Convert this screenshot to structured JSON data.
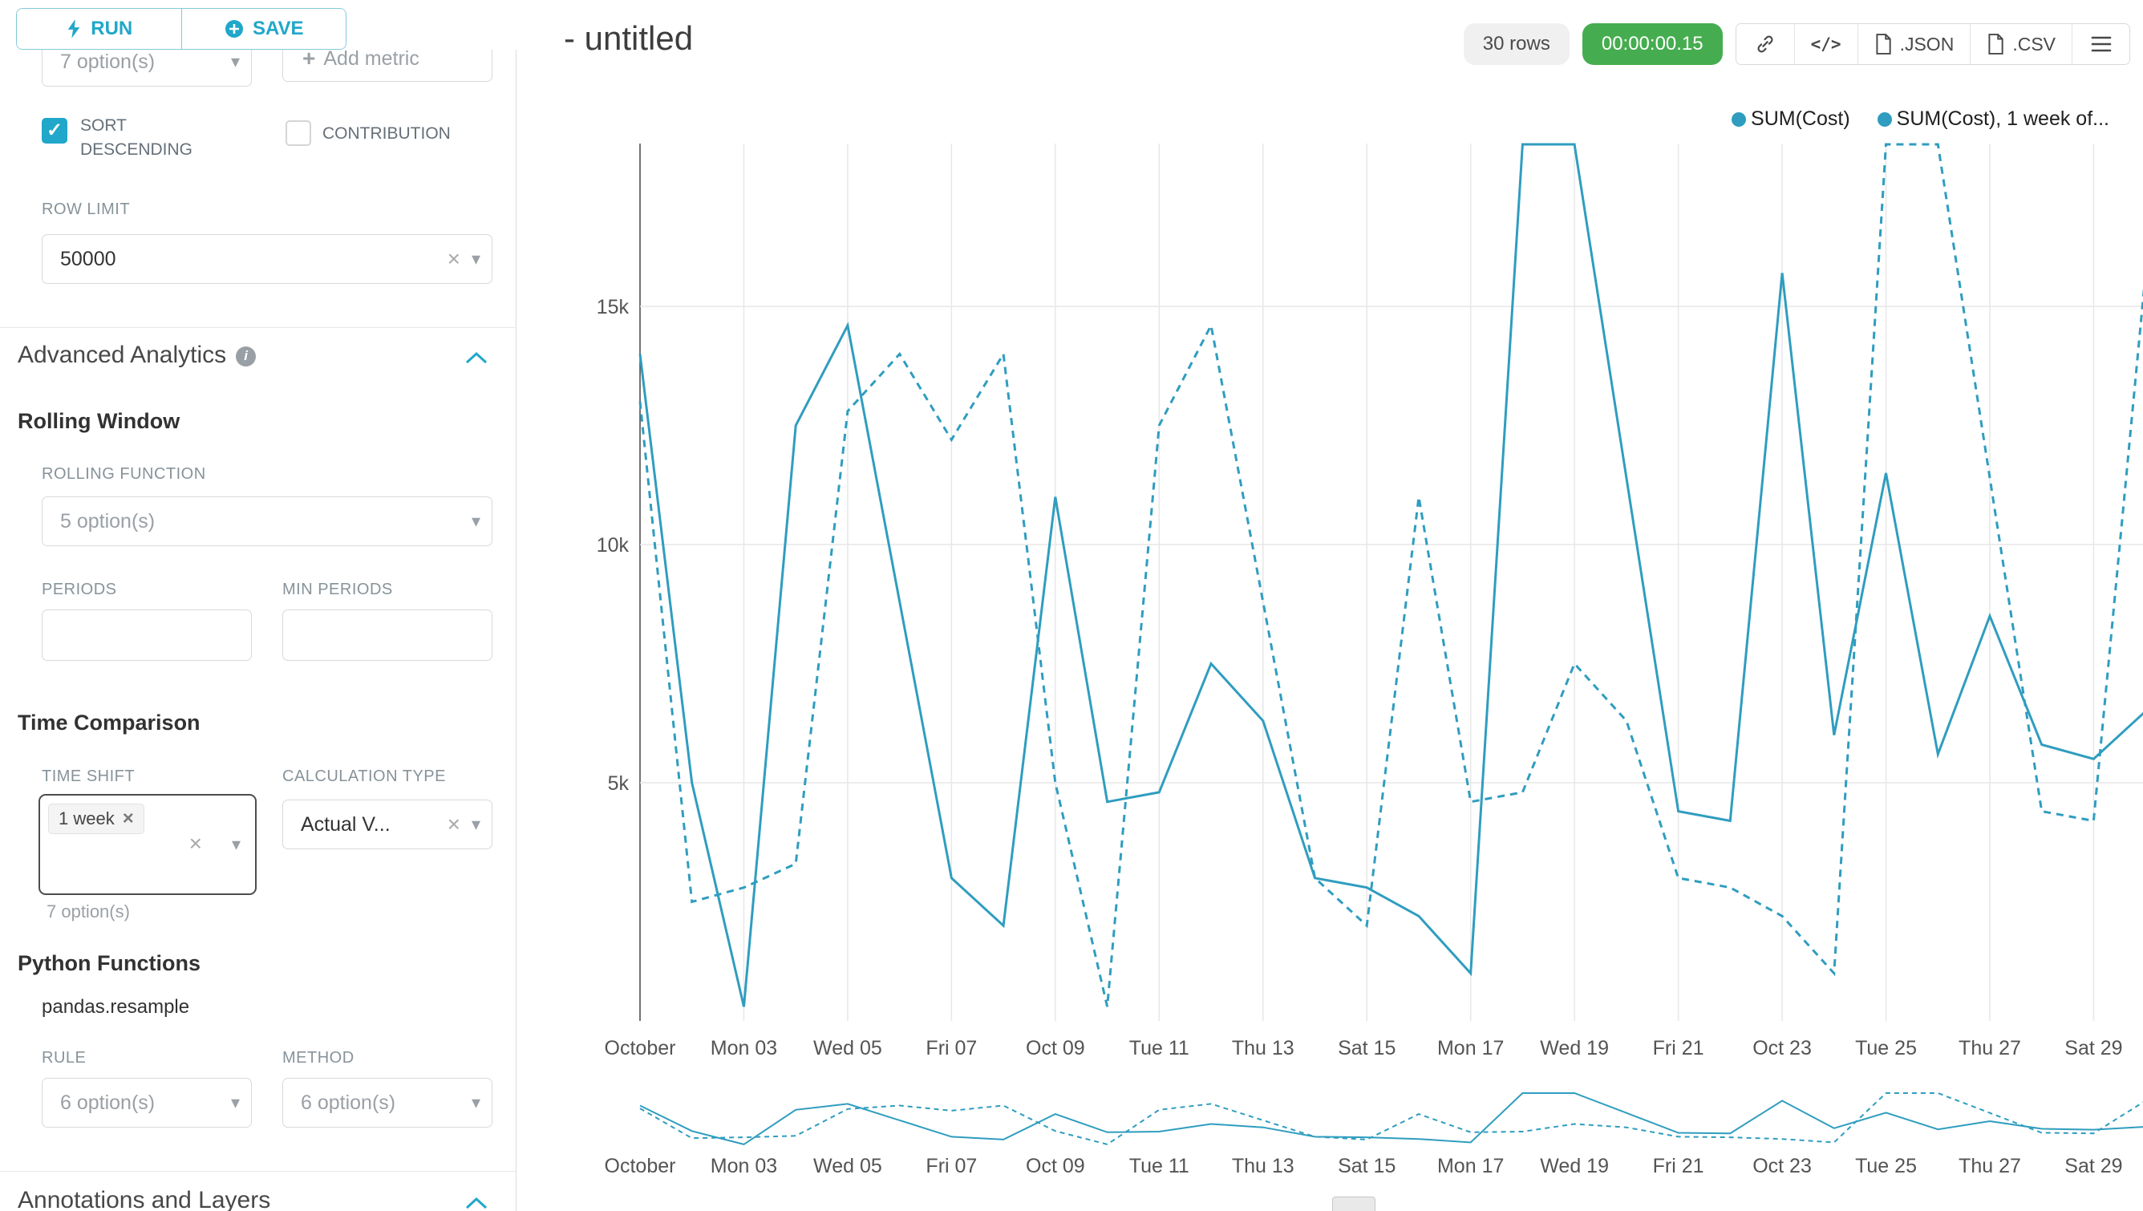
{
  "colors": {
    "accent": "#20a7c9",
    "timer_green": "#45ad4f",
    "line_blue": "#2f9dbf"
  },
  "icons": {
    "caret_down": "▾",
    "clear": "×",
    "check": "✓",
    "plus": "+",
    "info": "i",
    "code": "</>"
  },
  "panel": {
    "run_label": "RUN",
    "save_label": "SAVE",
    "metric_placeholder": "7 option(s)",
    "add_metric_label": "Add metric",
    "sort_label": "SORT DESCENDING",
    "contribution_label": "CONTRIBUTION",
    "row_limit_label": "ROW LIMIT",
    "row_limit_value": "50000",
    "advanced_analytics_title": "Advanced Analytics",
    "rolling_window_title": "Rolling Window",
    "rolling_function_label": "ROLLING FUNCTION",
    "rolling_function_placeholder": "5 option(s)",
    "periods_label": "PERIODS",
    "min_periods_label": "MIN PERIODS",
    "time_comparison_title": "Time Comparison",
    "time_shift_label": "TIME SHIFT",
    "time_shift_tag": "1 week",
    "time_shift_helper": "7 option(s)",
    "calculation_type_label": "CALCULATION TYPE",
    "calculation_type_value": "Actual V...",
    "python_functions_title": "Python Functions",
    "pandas_resample_label": "pandas.resample",
    "rule_label": "RULE",
    "rule_placeholder": "6 option(s)",
    "method_label": "METHOD",
    "method_placeholder": "6 option(s)",
    "annotations_title": "Annotations and Layers"
  },
  "header": {
    "title": "- untitled",
    "rows_badge": "30 rows",
    "timer": "00:00:00.15",
    "json_button": ".JSON",
    "csv_button": ".CSV"
  },
  "chart_data": {
    "type": "line",
    "title": "- untitled",
    "x_tick_labels": [
      "October",
      "Mon 03",
      "Wed 05",
      "Fri 07",
      "Oct 09",
      "Tue 11",
      "Thu 13",
      "Sat 15",
      "Mon 17",
      "Wed 19",
      "Fri 21",
      "Oct 23",
      "Tue 25",
      "Thu 27",
      "Sat 29"
    ],
    "x_days": 30,
    "y_ticks": [
      5000,
      10000,
      15000
    ],
    "y_tick_labels": [
      "5k",
      "10k",
      "15k"
    ],
    "ylim": [
      0,
      18400
    ],
    "grid": true,
    "legend_position": "top-right",
    "mini_range_chart": true,
    "series": [
      {
        "name": "SUM(Cost)",
        "line_style": "solid",
        "color": "#2f9dbf",
        "values": [
          14000,
          5000,
          300,
          12500,
          14600,
          8800,
          3000,
          2000,
          11000,
          4600,
          4800,
          7500,
          6300,
          3000,
          2800,
          2200,
          1000,
          18400,
          18400,
          11400,
          4400,
          4200,
          15700,
          6000,
          11500,
          5600,
          8500,
          5800,
          5500,
          6500
        ]
      },
      {
        "name": "SUM(Cost), 1 week of...",
        "line_style": "dashed",
        "color": "#2f9dbf",
        "values": [
          13000,
          2500,
          2800,
          3300,
          12800,
          14000,
          12200,
          14000,
          5000,
          300,
          12500,
          14600,
          8800,
          3000,
          2000,
          11000,
          4600,
          4800,
          7500,
          6300,
          3000,
          2800,
          2200,
          1000,
          18400,
          18400,
          11400,
          4400,
          4200,
          15700
        ]
      }
    ]
  }
}
